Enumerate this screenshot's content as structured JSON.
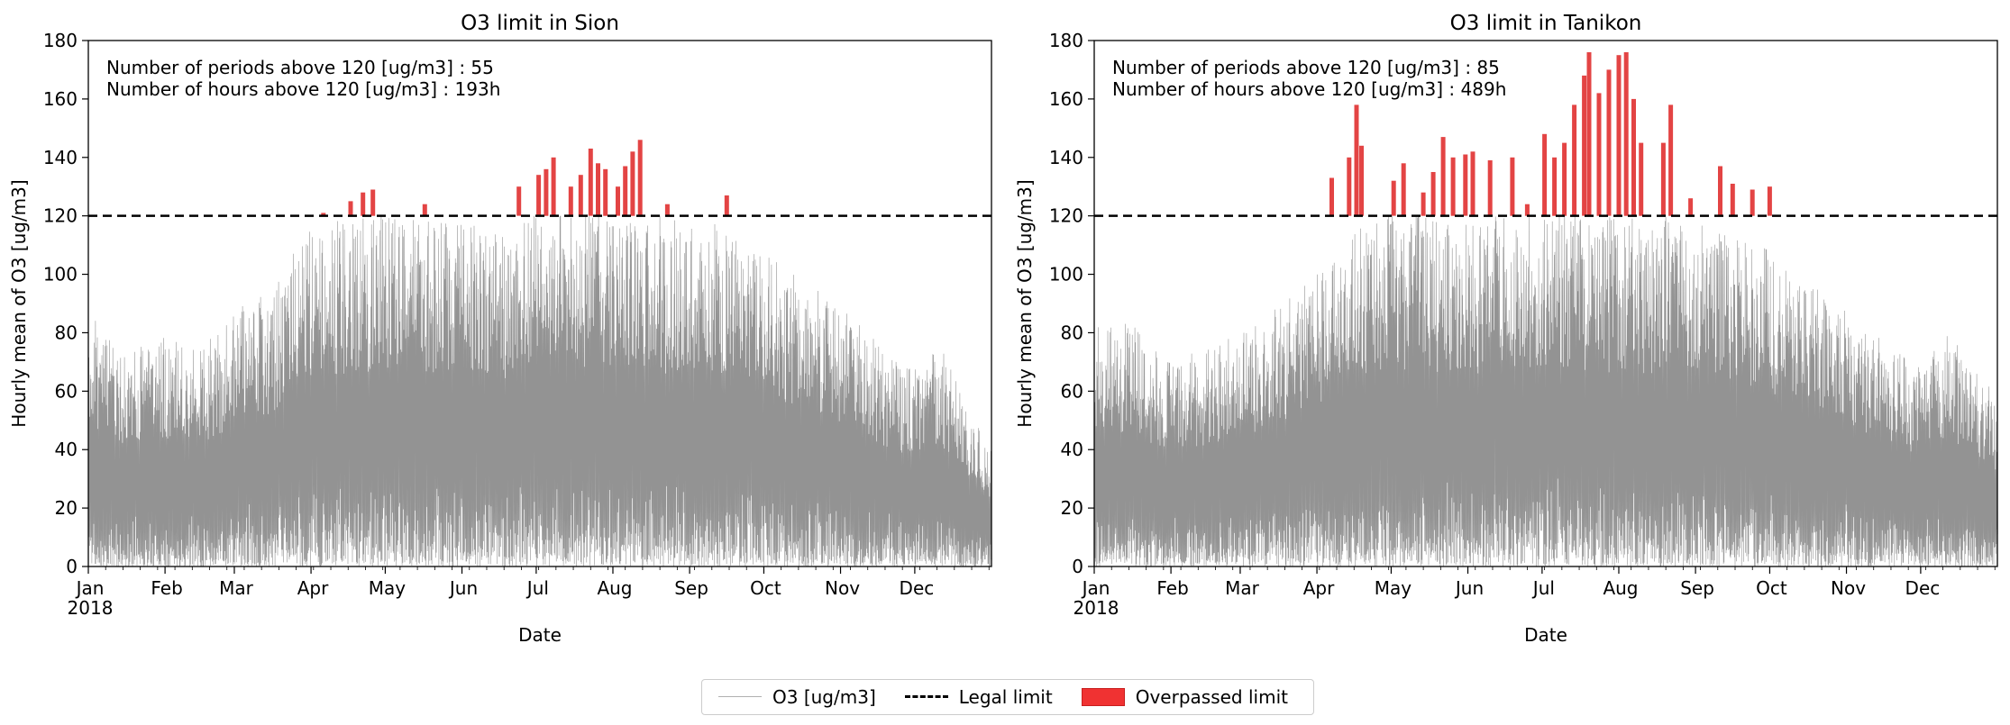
{
  "figure": {
    "legend": [
      {
        "label": "O3 [ug/m3]",
        "icon": "thin-gray-line",
        "color": "#999999"
      },
      {
        "label": "Legal limit",
        "icon": "dashed-black-line",
        "color": "#000000"
      },
      {
        "label": "Overpassed limit",
        "icon": "red-fill",
        "color": "#f03232"
      }
    ],
    "colors": {
      "o3": "#808080",
      "limit": "#000000",
      "overpass": "#e03030"
    }
  },
  "chart_data": [
    {
      "type": "area",
      "title": "O3 limit in Sion",
      "xlabel": "Date",
      "ylabel": "Hourly mean of O3 [ug/m3]",
      "ylim": [
        0,
        180
      ],
      "yticks": [
        "0",
        "20",
        "40",
        "60",
        "80",
        "100",
        "120",
        "140",
        "160",
        "180"
      ],
      "xticks": [
        "Jan",
        "Feb",
        "Mar",
        "Apr",
        "May",
        "Jun",
        "Jul",
        "Aug",
        "Sep",
        "Oct",
        "Nov",
        "Dec"
      ],
      "year_label": "2018",
      "limit": 120,
      "annotation": [
        "Number of periods above 120 [ug/m3] : 55",
        "Number of hours above 120 [ug/m3] : 193h"
      ],
      "envelope": {
        "x_day": [
          0,
          15,
          30,
          45,
          60,
          75,
          90,
          105,
          120,
          135,
          150,
          165,
          180,
          195,
          210,
          225,
          240,
          255,
          270,
          285,
          300,
          315,
          330,
          345,
          364
        ],
        "y_max": [
          88,
          72,
          80,
          75,
          88,
          95,
          118,
          120,
          122,
          118,
          120,
          115,
          122,
          125,
          122,
          120,
          120,
          118,
          110,
          100,
          92,
          80,
          68,
          75,
          40
        ]
      },
      "overpass_peaks": [
        {
          "day": 95,
          "value": 121
        },
        {
          "day": 106,
          "value": 125
        },
        {
          "day": 111,
          "value": 128
        },
        {
          "day": 115,
          "value": 129
        },
        {
          "day": 136,
          "value": 124
        },
        {
          "day": 174,
          "value": 130
        },
        {
          "day": 182,
          "value": 134
        },
        {
          "day": 185,
          "value": 136
        },
        {
          "day": 188,
          "value": 140
        },
        {
          "day": 195,
          "value": 130
        },
        {
          "day": 199,
          "value": 134
        },
        {
          "day": 203,
          "value": 143
        },
        {
          "day": 206,
          "value": 138
        },
        {
          "day": 209,
          "value": 136
        },
        {
          "day": 214,
          "value": 130
        },
        {
          "day": 217,
          "value": 137
        },
        {
          "day": 220,
          "value": 142
        },
        {
          "day": 223,
          "value": 146
        },
        {
          "day": 234,
          "value": 124
        },
        {
          "day": 258,
          "value": 127
        }
      ]
    },
    {
      "type": "area",
      "title": "O3 limit in Tanikon",
      "xlabel": "Date",
      "ylabel": "Hourly mean of O3 [ug/m3]",
      "ylim": [
        0,
        180
      ],
      "yticks": [
        "0",
        "20",
        "40",
        "60",
        "80",
        "100",
        "120",
        "140",
        "160",
        "180"
      ],
      "xticks": [
        "Jan",
        "Feb",
        "Mar",
        "Apr",
        "May",
        "Jun",
        "Jul",
        "Aug",
        "Sep",
        "Oct",
        "Nov",
        "Dec"
      ],
      "year_label": "2018",
      "limit": 120,
      "annotation": [
        "Number of periods above 120 [ug/m3] : 85",
        "Number of hours above 120 [ug/m3] : 489h"
      ],
      "envelope": {
        "x_day": [
          0,
          15,
          30,
          45,
          60,
          75,
          90,
          105,
          120,
          135,
          150,
          165,
          180,
          195,
          210,
          225,
          240,
          255,
          270,
          285,
          300,
          315,
          330,
          345,
          364
        ],
        "y_max": [
          85,
          83,
          70,
          75,
          80,
          90,
          100,
          115,
          122,
          120,
          120,
          120,
          122,
          122,
          120,
          120,
          120,
          115,
          110,
          100,
          90,
          80,
          70,
          80,
          60
        ]
      },
      "overpass_peaks": [
        {
          "day": 96,
          "value": 133
        },
        {
          "day": 103,
          "value": 140
        },
        {
          "day": 106,
          "value": 158
        },
        {
          "day": 108,
          "value": 144
        },
        {
          "day": 121,
          "value": 132
        },
        {
          "day": 125,
          "value": 138
        },
        {
          "day": 133,
          "value": 128
        },
        {
          "day": 137,
          "value": 135
        },
        {
          "day": 141,
          "value": 147
        },
        {
          "day": 145,
          "value": 140
        },
        {
          "day": 150,
          "value": 141
        },
        {
          "day": 153,
          "value": 142
        },
        {
          "day": 160,
          "value": 139
        },
        {
          "day": 169,
          "value": 140
        },
        {
          "day": 175,
          "value": 124
        },
        {
          "day": 182,
          "value": 148
        },
        {
          "day": 186,
          "value": 140
        },
        {
          "day": 190,
          "value": 145
        },
        {
          "day": 194,
          "value": 158
        },
        {
          "day": 198,
          "value": 168
        },
        {
          "day": 200,
          "value": 176
        },
        {
          "day": 204,
          "value": 162
        },
        {
          "day": 208,
          "value": 170
        },
        {
          "day": 212,
          "value": 175
        },
        {
          "day": 215,
          "value": 176
        },
        {
          "day": 218,
          "value": 160
        },
        {
          "day": 221,
          "value": 145
        },
        {
          "day": 230,
          "value": 145
        },
        {
          "day": 233,
          "value": 158
        },
        {
          "day": 241,
          "value": 126
        },
        {
          "day": 253,
          "value": 137
        },
        {
          "day": 258,
          "value": 131
        },
        {
          "day": 266,
          "value": 129
        },
        {
          "day": 273,
          "value": 130
        }
      ]
    }
  ]
}
